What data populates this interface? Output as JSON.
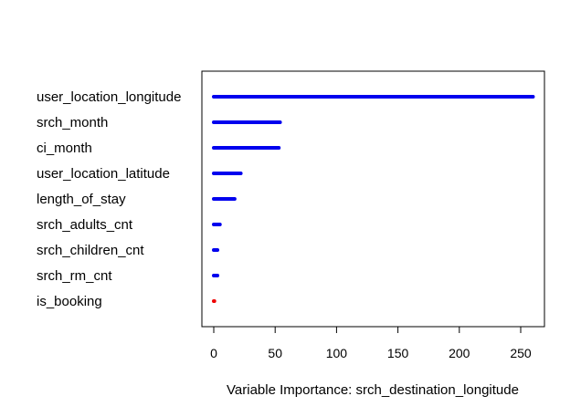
{
  "chart_data": {
    "type": "bar",
    "orientation": "horizontal",
    "title": "",
    "xlabel": "Variable Importance: srch_destination_longitude",
    "ylabel": "",
    "xlim": [
      0,
      260
    ],
    "xticks": [
      0,
      50,
      100,
      150,
      200,
      250
    ],
    "grid": false,
    "categories": [
      "user_location_longitude",
      "srch_month",
      "ci_month",
      "user_location_latitude",
      "length_of_stay",
      "srch_adults_cnt",
      "srch_children_cnt",
      "srch_rm_cnt",
      "is_booking"
    ],
    "values": [
      260,
      54,
      53,
      22,
      17,
      5,
      3,
      3,
      0.5
    ],
    "colors": [
      "#0000ee",
      "#0000ee",
      "#0000ee",
      "#0000ee",
      "#0000ee",
      "#0000ee",
      "#0000ee",
      "#0000ee",
      "#ee0000"
    ]
  }
}
